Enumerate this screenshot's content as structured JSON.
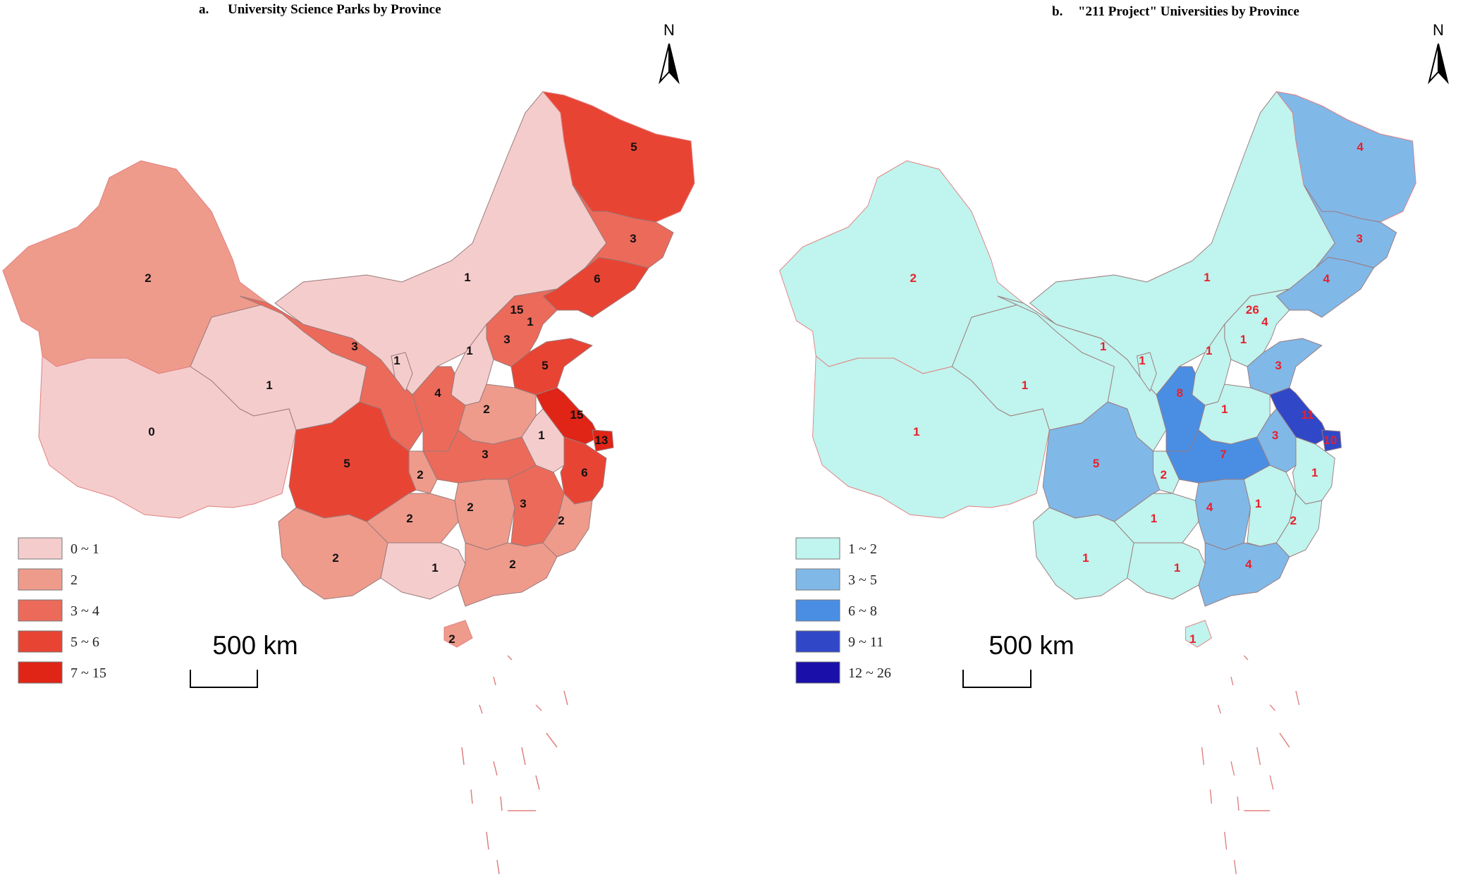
{
  "panels": [
    {
      "title_letter": "a.",
      "title": "University Science Parks by Province",
      "north": "N",
      "scale": "500 km",
      "label_color": "#111111",
      "border_color": "#e08080",
      "legend": [
        {
          "label": "0 ~ 1",
          "color": "#f5cccc"
        },
        {
          "label": "2",
          "color": "#ee9b8c"
        },
        {
          "label": "3 ~ 4",
          "color": "#ec6a5a"
        },
        {
          "label": "5 ~ 6",
          "color": "#e84434"
        },
        {
          "label": "7 ~ 15",
          "color": "#e02416"
        }
      ],
      "regions": [
        {
          "name": "Xinjiang",
          "value": "2",
          "cls": 1
        },
        {
          "name": "Tibet",
          "value": "0",
          "cls": 0
        },
        {
          "name": "Qinghai",
          "value": "1",
          "cls": 0
        },
        {
          "name": "Gansu",
          "value": "3",
          "cls": 2
        },
        {
          "name": "Inner Mongolia",
          "value": "1",
          "cls": 0
        },
        {
          "name": "Heilongjiang",
          "value": "5",
          "cls": 3
        },
        {
          "name": "Jilin",
          "value": "3",
          "cls": 2
        },
        {
          "name": "Liaoning",
          "value": "6",
          "cls": 3
        },
        {
          "name": "Beijing",
          "value": "15",
          "cls": 4
        },
        {
          "name": "Tianjin",
          "value": "1",
          "cls": 0
        },
        {
          "name": "Hebei",
          "value": "3",
          "cls": 2
        },
        {
          "name": "Shanxi",
          "value": "1",
          "cls": 0
        },
        {
          "name": "Shandong",
          "value": "5",
          "cls": 3
        },
        {
          "name": "Ningxia",
          "value": "1",
          "cls": 0
        },
        {
          "name": "Shaanxi",
          "value": "4",
          "cls": 2
        },
        {
          "name": "Henan",
          "value": "2",
          "cls": 1
        },
        {
          "name": "Jiangsu",
          "value": "15",
          "cls": 4
        },
        {
          "name": "Shanghai",
          "value": "13",
          "cls": 4
        },
        {
          "name": "Anhui",
          "value": "1",
          "cls": 0
        },
        {
          "name": "Hubei",
          "value": "3",
          "cls": 2
        },
        {
          "name": "Zhejiang",
          "value": "6",
          "cls": 3
        },
        {
          "name": "Sichuan",
          "value": "5",
          "cls": 3
        },
        {
          "name": "Chongqing",
          "value": "2",
          "cls": 1
        },
        {
          "name": "Hunan",
          "value": "2",
          "cls": 1
        },
        {
          "name": "Jiangxi",
          "value": "3",
          "cls": 2
        },
        {
          "name": "Fujian",
          "value": "2",
          "cls": 1
        },
        {
          "name": "Guizhou",
          "value": "2",
          "cls": 1
        },
        {
          "name": "Yunnan",
          "value": "2",
          "cls": 1
        },
        {
          "name": "Guangxi",
          "value": "1",
          "cls": 0
        },
        {
          "name": "Guangdong",
          "value": "2",
          "cls": 1
        },
        {
          "name": "Hainan",
          "value": "2",
          "cls": 1
        }
      ]
    },
    {
      "title_letter": "b.",
      "title": "\"211 Project\" Universities by Province",
      "north": "N",
      "scale": "500 km",
      "label_color": "#e8202a",
      "border_color": "#e08080",
      "legend": [
        {
          "label": "1 ~ 2",
          "color": "#c0f4ee"
        },
        {
          "label": "3 ~ 5",
          "color": "#80b8e8"
        },
        {
          "label": "6 ~ 8",
          "color": "#4a8ee4"
        },
        {
          "label": "9 ~ 11",
          "color": "#3048c8"
        },
        {
          "label": "12 ~ 26",
          "color": "#1a0fa8"
        }
      ],
      "regions": [
        {
          "name": "Xinjiang",
          "value": "2",
          "cls": 0
        },
        {
          "name": "Tibet",
          "value": "1",
          "cls": 0
        },
        {
          "name": "Qinghai",
          "value": "1",
          "cls": 0
        },
        {
          "name": "Gansu",
          "value": "1",
          "cls": 0
        },
        {
          "name": "Inner Mongolia",
          "value": "1",
          "cls": 0
        },
        {
          "name": "Heilongjiang",
          "value": "4",
          "cls": 1
        },
        {
          "name": "Jilin",
          "value": "3",
          "cls": 1
        },
        {
          "name": "Liaoning",
          "value": "4",
          "cls": 1
        },
        {
          "name": "Beijing",
          "value": "26",
          "cls": 4
        },
        {
          "name": "Tianjin",
          "value": "4",
          "cls": 1
        },
        {
          "name": "Hebei",
          "value": "1",
          "cls": 0
        },
        {
          "name": "Shanxi",
          "value": "1",
          "cls": 0
        },
        {
          "name": "Shandong",
          "value": "3",
          "cls": 1
        },
        {
          "name": "Ningxia",
          "value": "1",
          "cls": 0
        },
        {
          "name": "Shaanxi",
          "value": "8",
          "cls": 2
        },
        {
          "name": "Henan",
          "value": "1",
          "cls": 0
        },
        {
          "name": "Jiangsu",
          "value": "11",
          "cls": 3
        },
        {
          "name": "Shanghai",
          "value": "10",
          "cls": 3
        },
        {
          "name": "Anhui",
          "value": "3",
          "cls": 1
        },
        {
          "name": "Hubei",
          "value": "7",
          "cls": 2
        },
        {
          "name": "Zhejiang",
          "value": "1",
          "cls": 0
        },
        {
          "name": "Sichuan",
          "value": "5",
          "cls": 1
        },
        {
          "name": "Chongqing",
          "value": "2",
          "cls": 0
        },
        {
          "name": "Hunan",
          "value": "4",
          "cls": 1
        },
        {
          "name": "Jiangxi",
          "value": "1",
          "cls": 0
        },
        {
          "name": "Fujian",
          "value": "2",
          "cls": 0
        },
        {
          "name": "Guizhou",
          "value": "1",
          "cls": 0
        },
        {
          "name": "Yunnan",
          "value": "1",
          "cls": 0
        },
        {
          "name": "Guangxi",
          "value": "1",
          "cls": 0
        },
        {
          "name": "Guangdong",
          "value": "4",
          "cls": 1
        },
        {
          "name": "Hainan",
          "value": "1",
          "cls": 0
        }
      ]
    }
  ]
}
